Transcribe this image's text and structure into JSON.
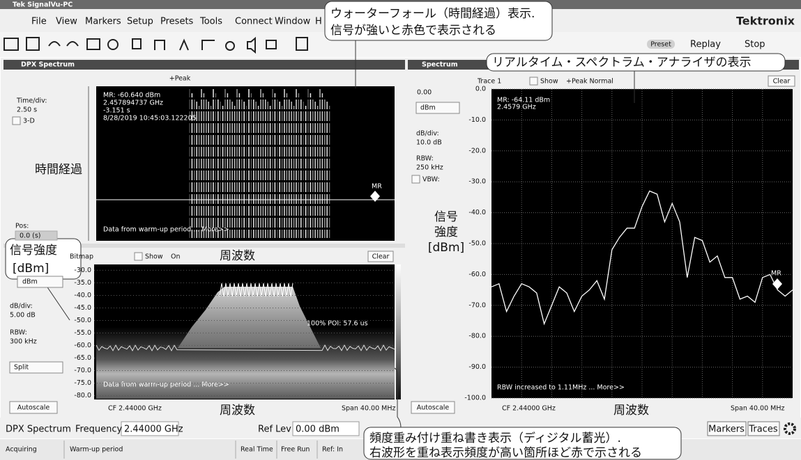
{
  "window": {
    "title": "Tek SignalVu-PC",
    "menu": [
      "File",
      "View",
      "Markers",
      "Setup",
      "Presets",
      "Tools",
      "Connect",
      "Window",
      "H"
    ],
    "brand": "Tektronix",
    "toolbar": {
      "preset": "Preset",
      "replay": "Replay",
      "stop": "Stop"
    }
  },
  "dpx_panel": {
    "title": "DPX Spectrum",
    "trace": "+Peak",
    "waterfall": {
      "time_div_label": "Time/div:",
      "time_div": "2.50 s",
      "three_d": "3-D",
      "pos_label": "Pos:",
      "pos": "0.0 (s)",
      "readout": [
        "MR: -60.640 dBm",
        "2.457894737 GHz",
        "-3.151 s",
        "8/28/2019 10:45:03.122205"
      ],
      "marker": "MR",
      "notice": "Data from warm-up period ... More>>"
    },
    "bitmap": {
      "mode": "Bitmap",
      "show": "Show",
      "on": "On",
      "clear": "Clear",
      "unit": "dBm",
      "db_div_label": "dB/div:",
      "db_div": "5.00 dB",
      "rbw_label": "RBW:",
      "rbw": "300 kHz",
      "layout": "Split",
      "autoscale": "Autoscale",
      "poi": "100% POI: 57.6 us",
      "notice": "Data from warm-up period ... More>>",
      "cf": "CF 2.44000 GHz",
      "span": "Span 40.00 MHz",
      "ylim": [
        -81.5,
        -28.5
      ],
      "yticks": [
        {
          "value": -30,
          "label": "-30.0"
        },
        {
          "value": -35,
          "label": "-35.0"
        },
        {
          "value": -40,
          "label": "-40.0"
        },
        {
          "value": -45,
          "label": "-45.0"
        },
        {
          "value": -50,
          "label": "-50.0"
        },
        {
          "value": -55,
          "label": "-55.0"
        },
        {
          "value": -60,
          "label": "-60.0"
        },
        {
          "value": -65,
          "label": "-65.0"
        },
        {
          "value": -70,
          "label": "-70.0"
        },
        {
          "value": -75,
          "label": "-75.0"
        },
        {
          "value": -80,
          "label": "-80.0"
        }
      ]
    }
  },
  "spectrum_panel": {
    "title": "Spectrum",
    "trace": "Trace 1",
    "show": "Show",
    "detection": "+Peak Normal",
    "clear": "Clear",
    "ref": "0.00",
    "unit": "dBm",
    "db_div_label": "dB/div:",
    "db_div": "10.0 dB",
    "rbw_label": "RBW:",
    "rbw": "250 kHz",
    "vbw": "VBW:",
    "readout": [
      "MR: -64.11 dBm",
      "2.4579 GHz"
    ],
    "marker": "MR",
    "notice": "RBW increased to 1.11MHz ... More>>",
    "autoscale": "Autoscale",
    "cf": "CF 2.44000 GHz",
    "span": "Span 40.00 MHz"
  },
  "chart_data": {
    "type": "line",
    "x": [
      2.42,
      2.421,
      2.422,
      2.423,
      2.424,
      2.425,
      2.426,
      2.427,
      2.428,
      2.429,
      2.43,
      2.431,
      2.432,
      2.433,
      2.434,
      2.435,
      2.436,
      2.437,
      2.438,
      2.439,
      2.44,
      2.441,
      2.442,
      2.443,
      2.444,
      2.445,
      2.446,
      2.447,
      2.448,
      2.449,
      2.45,
      2.451,
      2.452,
      2.453,
      2.454,
      2.455,
      2.456,
      2.457,
      2.458,
      2.459,
      2.46
    ],
    "values": [
      -64,
      -63,
      -72,
      -67,
      -63,
      -64,
      -66,
      -76,
      -70,
      -64,
      -66,
      -72,
      -67,
      -65,
      -62,
      -68,
      -52,
      -48,
      -45,
      -45,
      -38,
      -33,
      -34,
      -43,
      -37,
      -43,
      -61,
      -48,
      -49,
      -56,
      -54,
      -61,
      -61,
      -68,
      -67,
      -69,
      -61,
      -60,
      -65,
      -67,
      -65
    ],
    "xlim": [
      2.42,
      2.46
    ],
    "ylim": [
      -100,
      0
    ],
    "yticks": [
      {
        "value": 0,
        "label": "0.0"
      },
      {
        "value": -10,
        "label": "-10.0"
      },
      {
        "value": -20,
        "label": "-20.0"
      },
      {
        "value": -30,
        "label": "-30.0"
      },
      {
        "value": -40,
        "label": "-40.0"
      },
      {
        "value": -50,
        "label": "-50.0"
      },
      {
        "value": -60,
        "label": "-60.0"
      },
      {
        "value": -70,
        "label": "-70.0"
      },
      {
        "value": -80,
        "label": "-80.0"
      },
      {
        "value": -90,
        "label": "-90.0"
      },
      {
        "value": -100,
        "label": "-100.0"
      }
    ],
    "grid": true,
    "color": "#ffffff"
  },
  "bottom_bar": {
    "view": "DPX Spectrum",
    "frequency_label": "Frequency",
    "frequency": "2.44000 GHz",
    "ref_lev_label": "Ref Lev",
    "ref_lev": "0.00 dBm",
    "markers": "Markers",
    "traces": "Traces"
  },
  "status_bar": [
    "Acquiring",
    "Warm-up period",
    "Real Time",
    "Free Run",
    "Ref: In"
  ],
  "annotations": {
    "waterfall": [
      "ウォーターフォール（時間経過）表示.",
      "信号が強いと赤色で表示される"
    ],
    "realtime": "リアルタイム・スペクトラム・アナライザの表示",
    "time_axis": "時間経過",
    "frequency": [
      "周波数",
      "周波数",
      "周波数"
    ],
    "level_left": [
      "信号強度",
      "[dBm]"
    ],
    "level_right": [
      "信号",
      "強度",
      "[dBm]"
    ],
    "dpx": [
      "頻度重み付け重ね書き表示（ディジタル蓄光）.",
      "右波形を重ね表示頻度が高い箇所ほど赤で示される"
    ]
  }
}
